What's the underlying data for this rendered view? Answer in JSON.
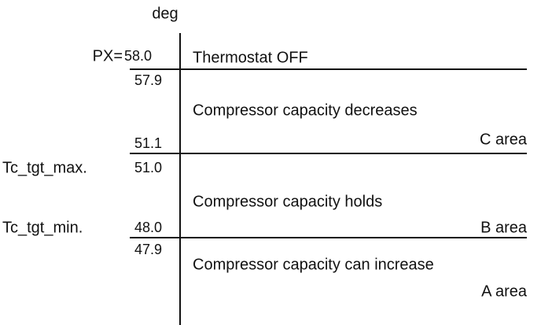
{
  "axis_unit": "deg",
  "px_label": "PX=",
  "zones": [
    {
      "label": "Thermostat OFF",
      "upper": "58.0"
    },
    {
      "label": "Compressor capacity decreases",
      "upper": "57.9",
      "lower": "51.1",
      "area": "C area"
    },
    {
      "label": "Compressor capacity holds",
      "upper": "51.0",
      "upper_name": "Tc_tgt_max.",
      "lower": "48.0",
      "lower_name": "Tc_tgt_min.",
      "area": "B area"
    },
    {
      "label": "Compressor capacity can increase",
      "upper": "47.9",
      "area": "A area"
    }
  ]
}
